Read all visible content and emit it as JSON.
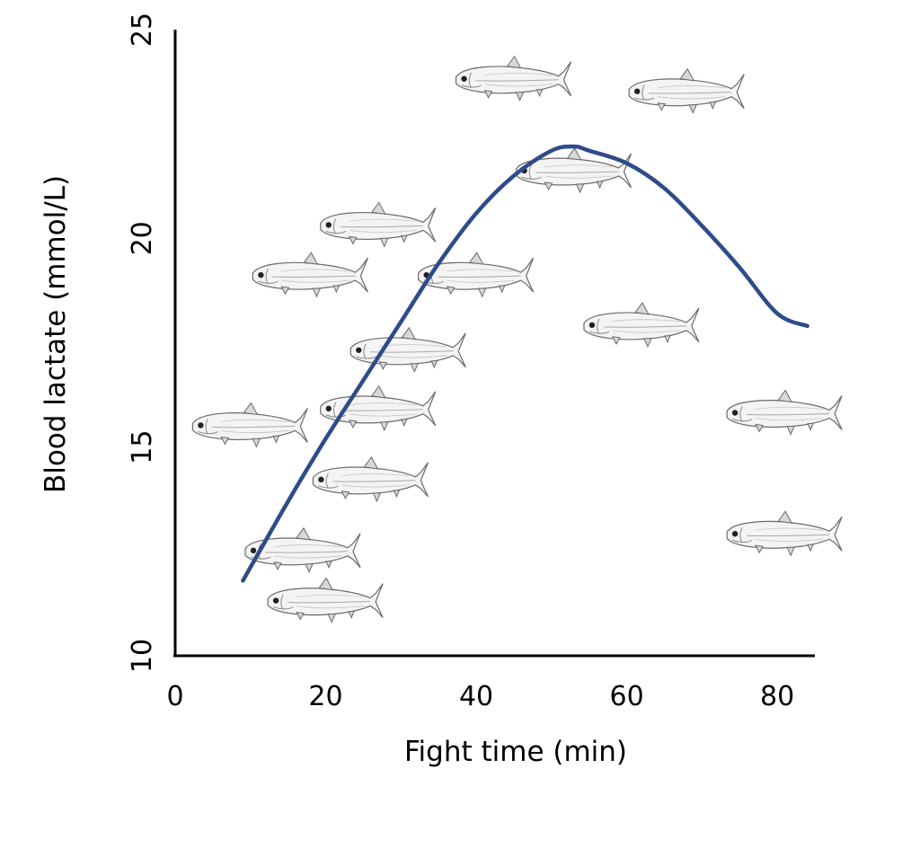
{
  "chart_data": {
    "type": "scatter",
    "title": "",
    "xlabel": "Fight time (min)",
    "ylabel": "Blood lactate (mmol/L)",
    "xlim": [
      0,
      85
    ],
    "ylim": [
      10,
      25
    ],
    "xticks": [
      0,
      20,
      40,
      60,
      80
    ],
    "yticks": [
      10,
      15,
      20,
      25
    ],
    "marker": "fish-icon",
    "series": [
      {
        "name": "Fish",
        "points": [
          {
            "x": 9,
            "y": 15.5
          },
          {
            "x": 16,
            "y": 12.5
          },
          {
            "x": 19,
            "y": 11.3
          },
          {
            "x": 25,
            "y": 14.2
          },
          {
            "x": 26,
            "y": 15.9
          },
          {
            "x": 30,
            "y": 17.3
          },
          {
            "x": 17,
            "y": 19.1
          },
          {
            "x": 26,
            "y": 20.3
          },
          {
            "x": 39,
            "y": 19.1
          },
          {
            "x": 44,
            "y": 23.8
          },
          {
            "x": 52,
            "y": 21.6
          },
          {
            "x": 61,
            "y": 17.9
          },
          {
            "x": 67,
            "y": 23.5
          },
          {
            "x": 80,
            "y": 15.8
          },
          {
            "x": 80,
            "y": 12.9
          }
        ]
      },
      {
        "name": "Trend",
        "kind": "curve",
        "color": "#2E4B8A",
        "x": [
          9,
          15,
          20,
          25,
          30,
          35,
          40,
          45,
          50,
          53,
          55,
          60,
          65,
          70,
          75,
          80,
          84
        ],
        "y": [
          11.8,
          13.7,
          15.2,
          16.6,
          18.0,
          19.4,
          20.6,
          21.5,
          22.1,
          22.2,
          22.1,
          21.8,
          21.2,
          20.3,
          19.3,
          18.2,
          17.9
        ]
      }
    ]
  }
}
